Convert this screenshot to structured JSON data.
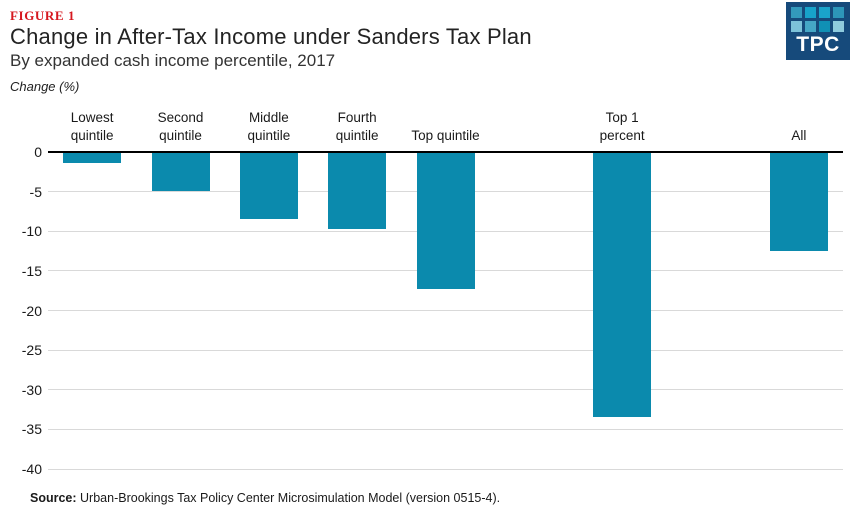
{
  "header": {
    "figure_label": "FIGURE 1",
    "title": "Change in After-Tax Income under Sanders Tax Plan",
    "subtitle": "By expanded cash income percentile, 2017"
  },
  "logo": {
    "text": "TPC",
    "bg_color": "#164a7b",
    "square_colors": [
      "#3399bc",
      "#17a2c9",
      "#1aa3ca",
      "#2d96b9",
      "#7cc2d9",
      "#45a7c6",
      "#1090b5",
      "#8fcbdd"
    ]
  },
  "chart": {
    "unit_label": "Change (%)"
  },
  "chart_data": {
    "type": "bar",
    "title": "Change in After-Tax Income under Sanders Tax Plan",
    "subtitle": "By expanded cash income percentile, 2017",
    "ylabel": "Change (%)",
    "xlabel": "Expanded cash income percentile",
    "categories": [
      "Lowest quintile",
      "Second quintile",
      "Middle quintile",
      "Fourth quintile",
      "Top quintile",
      "Top 1 percent",
      "All"
    ],
    "category_label_lines": [
      [
        "Lowest",
        "quintile"
      ],
      [
        "Second",
        "quintile"
      ],
      [
        "Middle",
        "quintile"
      ],
      [
        "Fourth",
        "quintile"
      ],
      [
        "Top quintile"
      ],
      [
        "Top 1",
        "percent"
      ],
      [
        "All"
      ]
    ],
    "values": [
      -1.4,
      -4.9,
      -8.5,
      -9.7,
      -17.3,
      -33.5,
      -12.5
    ],
    "ylim": [
      0,
      -40
    ],
    "yticks": [
      0,
      -5,
      -10,
      -15,
      -20,
      -25,
      -30,
      -35,
      -40
    ],
    "grid": true,
    "legend": false,
    "bar_color": "#0b8aad",
    "category_slots": [
      0,
      1,
      2,
      3,
      4,
      6,
      8
    ],
    "slots_total": 9
  },
  "footer": {
    "source_label": "Source:",
    "source_text": "Urban-Brookings Tax Policy Center Microsimulation Model (version 0515-4)."
  }
}
